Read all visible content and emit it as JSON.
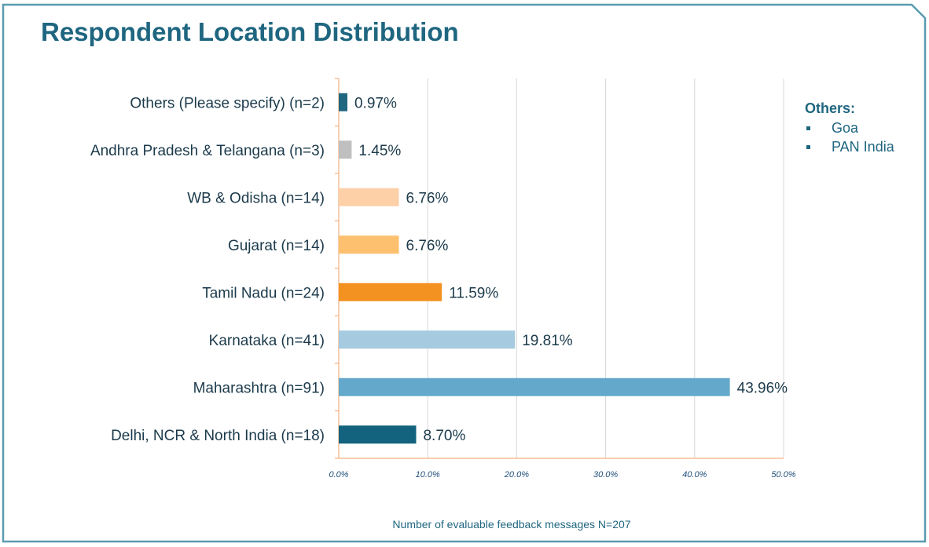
{
  "page": {
    "title": "Respondent Location Distribution",
    "footnote": "Number of evaluable feedback messages N=207",
    "frame_color": "#5a9bb0"
  },
  "legend": {
    "heading": "Others:",
    "items": [
      "Goa",
      "PAN India"
    ]
  },
  "chart_data": {
    "type": "bar",
    "orientation": "horizontal",
    "categories": [
      "Others (Please specify) (n=2)",
      "Andhra Pradesh & Telangana (n=3)",
      "WB & Odisha (n=14)",
      "Gujarat (n=14)",
      "Tamil Nadu (n=24)",
      "Karnataka (n=41)",
      "Maharashtra (n=91)",
      "Delhi, NCR & North India (n=18)"
    ],
    "values": [
      0.97,
      1.45,
      6.76,
      6.76,
      11.59,
      19.81,
      43.96,
      8.7
    ],
    "value_labels": [
      "0.97%",
      "1.45%",
      "6.76%",
      "6.76%",
      "11.59%",
      "19.81%",
      "43.96%",
      "8.70%"
    ],
    "colors": [
      "#1f6680",
      "#bfbfbf",
      "#fdd0a8",
      "#fcc06e",
      "#f39220",
      "#a6cadf",
      "#64a9cb",
      "#14637e"
    ],
    "xlim": [
      0,
      50
    ],
    "xticks": [
      0,
      10,
      20,
      30,
      40,
      50
    ],
    "xtick_labels": [
      "0.0%",
      "10.0%",
      "20.0%",
      "30.0%",
      "40.0%",
      "50.0%"
    ],
    "grid": "vertical",
    "title": "Respondent Location Distribution",
    "xlabel": "",
    "ylabel": ""
  }
}
